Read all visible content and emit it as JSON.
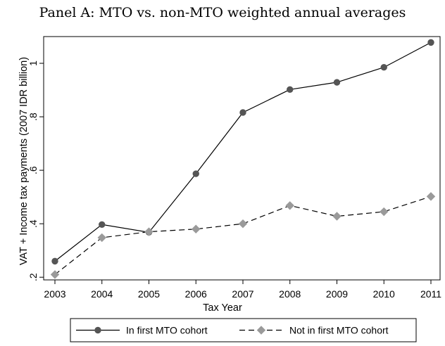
{
  "chart_data": {
    "type": "line",
    "title": "Panel A: MTO vs. non-MTO weighted annual averages",
    "xlabel": "Tax Year",
    "ylabel": "VAT + Income tax payments (2007 IDR billion)",
    "x": [
      2003,
      2004,
      2005,
      2006,
      2007,
      2008,
      2009,
      2010,
      2011
    ],
    "xticks": [
      "2003",
      "2004",
      "2005",
      "2006",
      "2007",
      "2008",
      "2009",
      "2010",
      "2011"
    ],
    "yticks": [
      0.2,
      0.4,
      0.6,
      0.8,
      1.0
    ],
    "ytick_labels": [
      ".2",
      ".4",
      ".6",
      ".8",
      "1"
    ],
    "ylim": [
      0.19,
      1.1
    ],
    "xlim": [
      2003,
      2011
    ],
    "grid": false,
    "legend_position": "bottom",
    "series": [
      {
        "name": "In first MTO cohort",
        "line_style": "solid",
        "marker": "circle",
        "color": "#000000",
        "marker_color": "#555555",
        "values": [
          0.26,
          0.397,
          0.368,
          0.587,
          0.816,
          0.902,
          0.929,
          0.985,
          1.078
        ]
      },
      {
        "name": "Not in first MTO cohort",
        "line_style": "dashed",
        "marker": "diamond",
        "color": "#000000",
        "marker_color": "#9a9a9a",
        "values": [
          0.21,
          0.348,
          0.37,
          0.38,
          0.4,
          0.468,
          0.428,
          0.445,
          0.502
        ]
      }
    ]
  }
}
